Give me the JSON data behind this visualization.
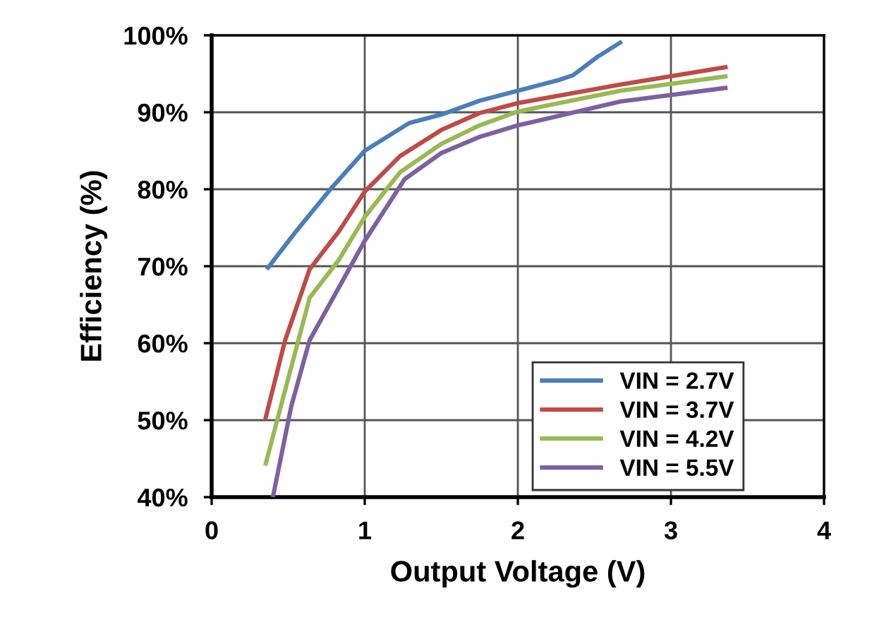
{
  "chart_data": {
    "type": "line",
    "xlabel": "Output Voltage (V)",
    "ylabel": "Efficiency (%)",
    "xlim": [
      0,
      4
    ],
    "xticks": [
      0,
      1,
      2,
      3,
      4
    ],
    "ylim": [
      40,
      100
    ],
    "yticks": [
      {
        "value": 40,
        "label": "40%"
      },
      {
        "value": 50,
        "label": "50%"
      },
      {
        "value": 60,
        "label": "60%"
      },
      {
        "value": 70,
        "label": "70%"
      },
      {
        "value": 80,
        "label": "80%"
      },
      {
        "value": 90,
        "label": "90%"
      },
      {
        "value": 100,
        "label": "100%"
      }
    ],
    "grid": true,
    "legend": "bottom right",
    "marker": "none",
    "line_style": "solid",
    "series": [
      {
        "name": "VIN = 2.7V",
        "color": "#4a7ebb",
        "x": [
          0.36,
          0.55,
          0.78,
          1.0,
          1.29,
          1.5,
          1.75,
          2.0,
          2.27,
          2.36,
          2.52,
          2.68
        ],
        "values": [
          69.6,
          74.5,
          80.1,
          85.0,
          88.6,
          89.7,
          91.5,
          92.8,
          94.2,
          94.8,
          97.2,
          99.2
        ]
      },
      {
        "name": "VIN = 3.7V",
        "color": "#be4b48",
        "x": [
          0.35,
          0.48,
          0.64,
          0.83,
          1.0,
          1.23,
          1.5,
          1.75,
          2.0,
          2.67,
          3.37
        ],
        "values": [
          50.1,
          60.4,
          69.6,
          74.5,
          79.7,
          84.3,
          87.7,
          89.9,
          91.2,
          93.6,
          95.9
        ]
      },
      {
        "name": "VIN = 4.2V",
        "color": "#98b954",
        "x": [
          0.35,
          0.46,
          0.64,
          0.83,
          1.0,
          1.23,
          1.5,
          1.75,
          2.0,
          2.67,
          3.37
        ],
        "values": [
          44.1,
          52.4,
          65.9,
          70.8,
          76.4,
          82.2,
          85.9,
          88.3,
          90.1,
          92.8,
          94.7
        ]
      },
      {
        "name": "VIN = 5.5V",
        "color": "#7d60a0",
        "x": [
          0.4,
          0.52,
          0.64,
          0.83,
          1.0,
          1.26,
          1.5,
          1.75,
          2.0,
          2.67,
          3.37
        ],
        "values": [
          40.0,
          51.8,
          60.4,
          67.2,
          73.3,
          81.3,
          84.7,
          86.8,
          88.3,
          91.4,
          93.2
        ]
      }
    ]
  }
}
